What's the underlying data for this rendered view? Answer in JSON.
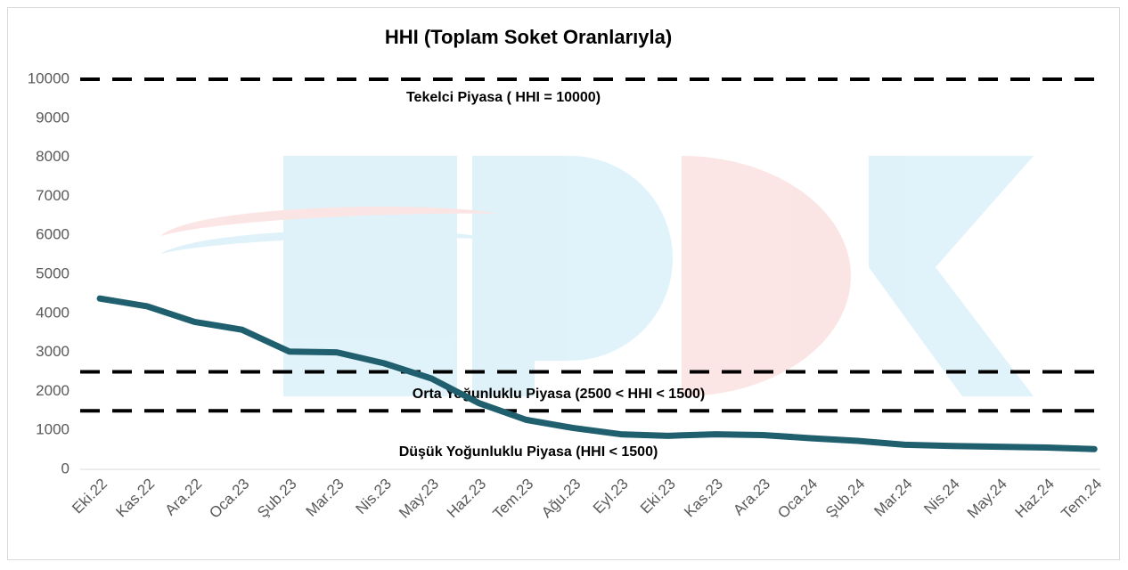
{
  "chart_data": {
    "type": "line",
    "title": "HHI (Toplam Soket Oranlarıyla)",
    "categories": [
      "Eki.22",
      "Kas.22",
      "Ara.22",
      "Oca.23",
      "Şub.23",
      "Mar.23",
      "Nis.23",
      "May.23",
      "Haz.23",
      "Tem.23",
      "Ağu.23",
      "Eyl.23",
      "Eki.23",
      "Kas.23",
      "Ara.23",
      "Oca.24",
      "Şub.24",
      "Mar.24",
      "Nis.24",
      "May.24",
      "Haz.24",
      "Tem.24"
    ],
    "values": [
      4380,
      4180,
      3780,
      3580,
      3020,
      3000,
      2720,
      2330,
      1700,
      1270,
      1060,
      900,
      860,
      900,
      880,
      800,
      730,
      630,
      600,
      580,
      560,
      520
    ],
    "color": "#1f5f6e",
    "ylim": [
      0,
      10000
    ],
    "yticks": [
      0,
      1000,
      2000,
      3000,
      4000,
      5000,
      6000,
      7000,
      8000,
      9000,
      10000
    ],
    "reference_lines": [
      10000,
      2500,
      1500
    ],
    "annotations": [
      "Tekelci Piyasa ( HHI = 10000)",
      "Orta Yoğunluklu Piyasa (2500 < HHI < 1500)",
      "Düşük Yoğunluklu Piyasa (HHI < 1500)"
    ]
  }
}
